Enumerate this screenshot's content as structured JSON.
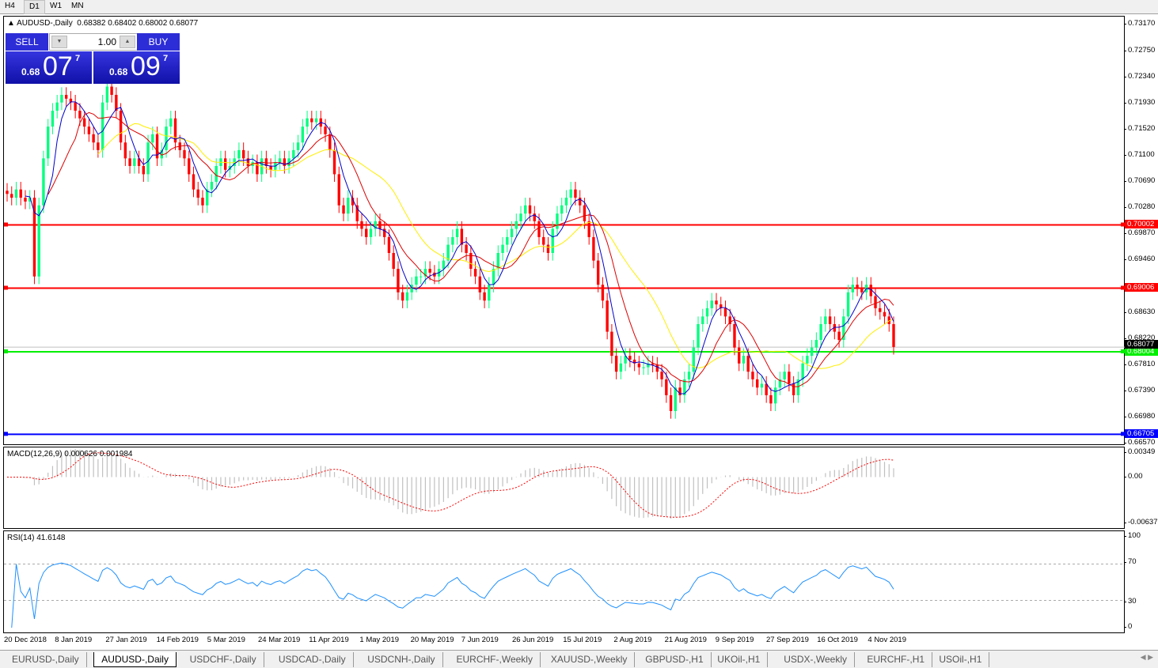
{
  "timeframes": [
    "H4",
    "D1",
    "W1",
    "MN"
  ],
  "active_timeframe": "D1",
  "chart": {
    "symbol_line": "AUDUSD-,Daily",
    "ohlc": "0.68382 0.68402 0.68002 0.68077"
  },
  "trade_panel": {
    "sell_label": "SELL",
    "buy_label": "BUY",
    "lot": "1.00",
    "sell_prefix": "0.68",
    "sell_big": "07",
    "sell_sup": "7",
    "buy_prefix": "0.68",
    "buy_big": "09",
    "buy_sup": "7"
  },
  "macd": {
    "title": "MACD(12,26,9) 0.000626 0.001984",
    "axis": [
      "0.00349",
      "0.00",
      "-0.00637"
    ],
    "range": [
      -0.00637,
      0.00349
    ]
  },
  "rsi": {
    "title": "RSI(14) 41.6148",
    "axis": [
      "100",
      "70",
      "30",
      "0"
    ],
    "levels": [
      70,
      30
    ]
  },
  "price_axis": [
    "0.73170",
    "0.72750",
    "0.72340",
    "0.71930",
    "0.71520",
    "0.71100",
    "0.70690",
    "0.70280",
    "0.69870",
    "0.69460",
    "0.68630",
    "0.68220",
    "0.67810",
    "0.67390",
    "0.66980",
    "0.66570"
  ],
  "levels": [
    {
      "price": "0.70002",
      "color": "#ff0000"
    },
    {
      "price": "0.69006",
      "color": "#ff0000"
    },
    {
      "price": "0.68004",
      "color": "#00ee00"
    },
    {
      "price": "0.66705",
      "color": "#0000ff"
    }
  ],
  "current_price": "0.68077",
  "colors": {
    "bull": "#00ff7f",
    "bear": "#ff0000",
    "ma_fast": "#0000cc",
    "ma_mid": "#dd0000",
    "ma_slow": "#ffee00",
    "macd_hist": "#c0c0c0",
    "macd_signal": "#ff0000",
    "rsi": "#1e90ff"
  },
  "chart_data": {
    "type": "candlestick",
    "x_labels": [
      "20 Dec 2018",
      "8 Jan 2019",
      "27 Jan 2019",
      "14 Feb 2019",
      "5 Mar 2019",
      "24 Mar 2019",
      "11 Apr 2019",
      "1 May 2019",
      "20 May 2019",
      "7 Jun 2019",
      "26 Jun 2019",
      "15 Jul 2019",
      "2 Aug 2019",
      "21 Aug 2019",
      "9 Sep 2019",
      "27 Sep 2019",
      "16 Oct 2019",
      "4 Nov 2019"
    ],
    "ylim": [
      0.6657,
      0.7317
    ],
    "closes": [
      0.7049,
      0.7043,
      0.7056,
      0.7043,
      0.7037,
      0.7043,
      0.6919,
      0.7031,
      0.7105,
      0.7155,
      0.718,
      0.7193,
      0.7205,
      0.7199,
      0.7193,
      0.718,
      0.7168,
      0.7155,
      0.7143,
      0.713,
      0.7118,
      0.7193,
      0.7218,
      0.7205,
      0.718,
      0.713,
      0.7105,
      0.7093,
      0.7105,
      0.7093,
      0.708,
      0.713,
      0.7143,
      0.7105,
      0.7118,
      0.7155,
      0.7168,
      0.713,
      0.7118,
      0.7105,
      0.708,
      0.7056,
      0.7043,
      0.7031,
      0.7056,
      0.7068,
      0.7093,
      0.7105,
      0.7087,
      0.7093,
      0.7105,
      0.7118,
      0.7105,
      0.7093,
      0.7099,
      0.708,
      0.7105,
      0.7093,
      0.7087,
      0.7099,
      0.7105,
      0.7093,
      0.7105,
      0.7118,
      0.713,
      0.7155,
      0.7168,
      0.7162,
      0.7168,
      0.7155,
      0.7143,
      0.7118,
      0.708,
      0.7031,
      0.7018,
      0.7043,
      0.7031,
      0.7006,
      0.6994,
      0.6981,
      0.6994,
      0.7006,
      0.6994,
      0.6981,
      0.6956,
      0.6931,
      0.6894,
      0.6881,
      0.6894,
      0.6906,
      0.6919,
      0.6919,
      0.6931,
      0.6925,
      0.6919,
      0.6931,
      0.6944,
      0.6969,
      0.6981,
      0.6994,
      0.6969,
      0.6956,
      0.6931,
      0.6919,
      0.6894,
      0.6881,
      0.6906,
      0.6931,
      0.6956,
      0.6969,
      0.6981,
      0.6994,
      0.7006,
      0.7018,
      0.7031,
      0.7018,
      0.7006,
      0.6981,
      0.6969,
      0.6956,
      0.6994,
      0.7018,
      0.7031,
      0.7043,
      0.7056,
      0.7043,
      0.7031,
      0.7006,
      0.6981,
      0.6944,
      0.6906,
      0.6881,
      0.6832,
      0.6794,
      0.6769,
      0.6782,
      0.6794,
      0.6788,
      0.6782,
      0.6776,
      0.6776,
      0.6782,
      0.678,
      0.6769,
      0.6757,
      0.6732,
      0.6707,
      0.6744,
      0.6732,
      0.6757,
      0.6769,
      0.6807,
      0.6844,
      0.6856,
      0.6869,
      0.6881,
      0.6875,
      0.6869,
      0.6856,
      0.6844,
      0.6807,
      0.6782,
      0.6794,
      0.6769,
      0.6757,
      0.6744,
      0.675,
      0.6732,
      0.6719,
      0.6744,
      0.6757,
      0.6769,
      0.675,
      0.6732,
      0.6757,
      0.6782,
      0.6794,
      0.6807,
      0.6819,
      0.6844,
      0.6856,
      0.6844,
      0.6832,
      0.6819,
      0.6856,
      0.6894,
      0.6906,
      0.69,
      0.6894,
      0.6906,
      0.6888,
      0.6869,
      0.6863,
      0.6856,
      0.6844,
      0.6808
    ]
  },
  "tabs": [
    "EURUSD-,Daily",
    "AUDUSD-,Daily",
    "USDCHF-,Daily",
    "USDCAD-,Daily",
    "USDCNH-,Daily",
    "EURCHF-,Weekly",
    "XAUUSD-,Weekly",
    "GBPUSD-,H1",
    "UKOil-,H1",
    "USDX-,Weekly",
    "EURCHF-,H1",
    "USOil-,H1"
  ],
  "active_tab": "AUDUSD-,Daily"
}
